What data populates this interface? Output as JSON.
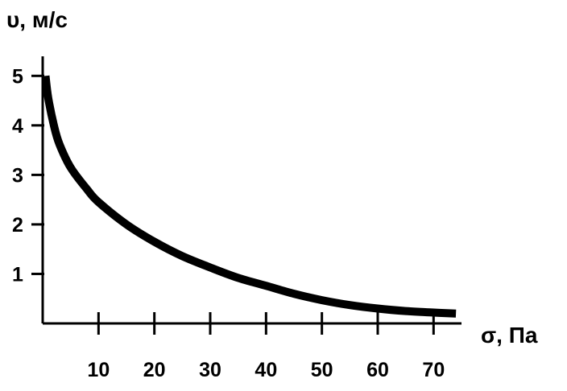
{
  "chart_data": {
    "type": "line",
    "title": "",
    "xlabel": "σ, Па",
    "ylabel": "υ, м/с",
    "xlim": [
      0,
      75
    ],
    "ylim": [
      0,
      5.2
    ],
    "x_ticks": [
      10,
      20,
      30,
      40,
      50,
      60,
      70
    ],
    "y_ticks": [
      1,
      2,
      3,
      4,
      5
    ],
    "x_tick_labels": [
      "10",
      "20",
      "30",
      "40",
      "50",
      "60",
      "70"
    ],
    "y_tick_labels": [
      "1",
      "2",
      "3",
      "4",
      "5"
    ],
    "grid": false,
    "legend": "none",
    "line_color": "#000000",
    "series": [
      {
        "x": [
          0.5,
          1,
          2,
          3,
          5,
          8,
          10,
          15,
          20,
          25,
          30,
          35,
          40,
          45,
          50,
          55,
          60,
          65,
          70,
          74
        ],
        "y": [
          5.0,
          4.55,
          4.0,
          3.62,
          3.15,
          2.7,
          2.45,
          2.0,
          1.65,
          1.36,
          1.13,
          0.92,
          0.76,
          0.6,
          0.47,
          0.37,
          0.3,
          0.25,
          0.22,
          0.2
        ]
      }
    ]
  }
}
